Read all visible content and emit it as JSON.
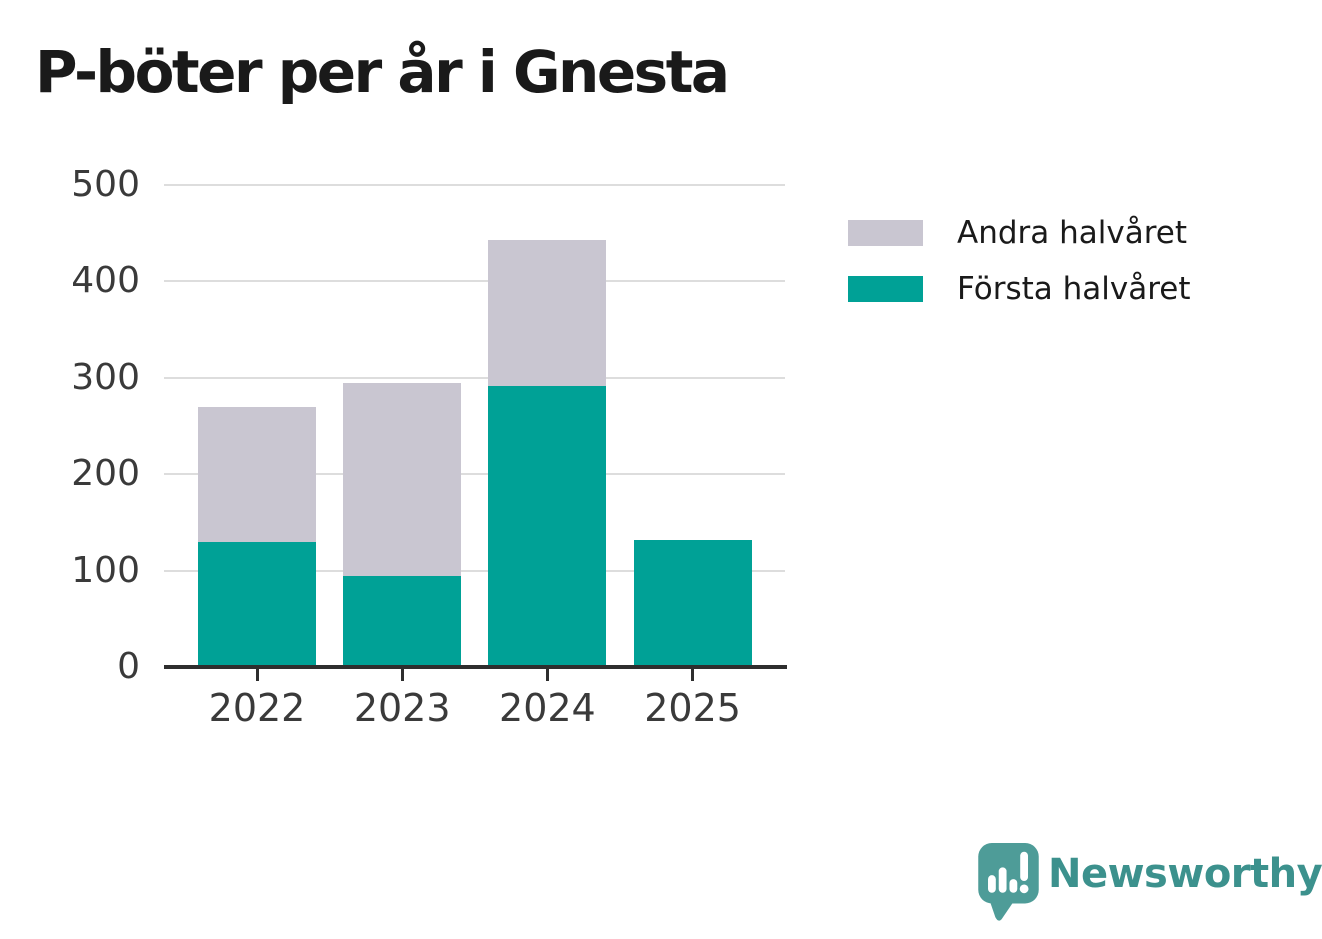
{
  "title": "P-böter per år i Gnesta",
  "chart_data": {
    "type": "bar",
    "stacked": true,
    "categories": [
      "2022",
      "2023",
      "2024",
      "2025"
    ],
    "series": [
      {
        "name": "Första halvåret",
        "color": "#00a196",
        "values": [
          130,
          94,
          291,
          132
        ]
      },
      {
        "name": "Andra halvåret",
        "color": "#c9c6d1",
        "values": [
          140,
          201,
          152,
          0
        ]
      }
    ],
    "stack_totals": [
      270,
      295,
      443,
      132
    ],
    "title": "P-böter per år i Gnesta",
    "xlabel": "",
    "ylabel": "",
    "ylim": [
      0,
      500
    ],
    "yticks": [
      0,
      100,
      200,
      300,
      400,
      500
    ],
    "grid": true,
    "legend_position": "right"
  },
  "legend": {
    "items": [
      {
        "label": "Andra halvåret",
        "color": "#c9c6d1"
      },
      {
        "label": "Första halvåret",
        "color": "#00a196"
      }
    ]
  },
  "branding": {
    "wordmark": "Newsworthy",
    "logo_icon": "newsworthy-speech-bubble-bar-chart-icon"
  },
  "colors": {
    "background": "#ffffff",
    "title_text": "#1a1a1a",
    "tick_text": "#3a3a3a",
    "legend_text": "#1a1a1a",
    "gridline": "#dddddd",
    "axis_line": "#2e2e2e",
    "bar_teal": "#00a196",
    "bar_gray": "#c9c6d1",
    "logo_bubble": "#4e9c98",
    "wordmark_text": "#3c918d"
  }
}
